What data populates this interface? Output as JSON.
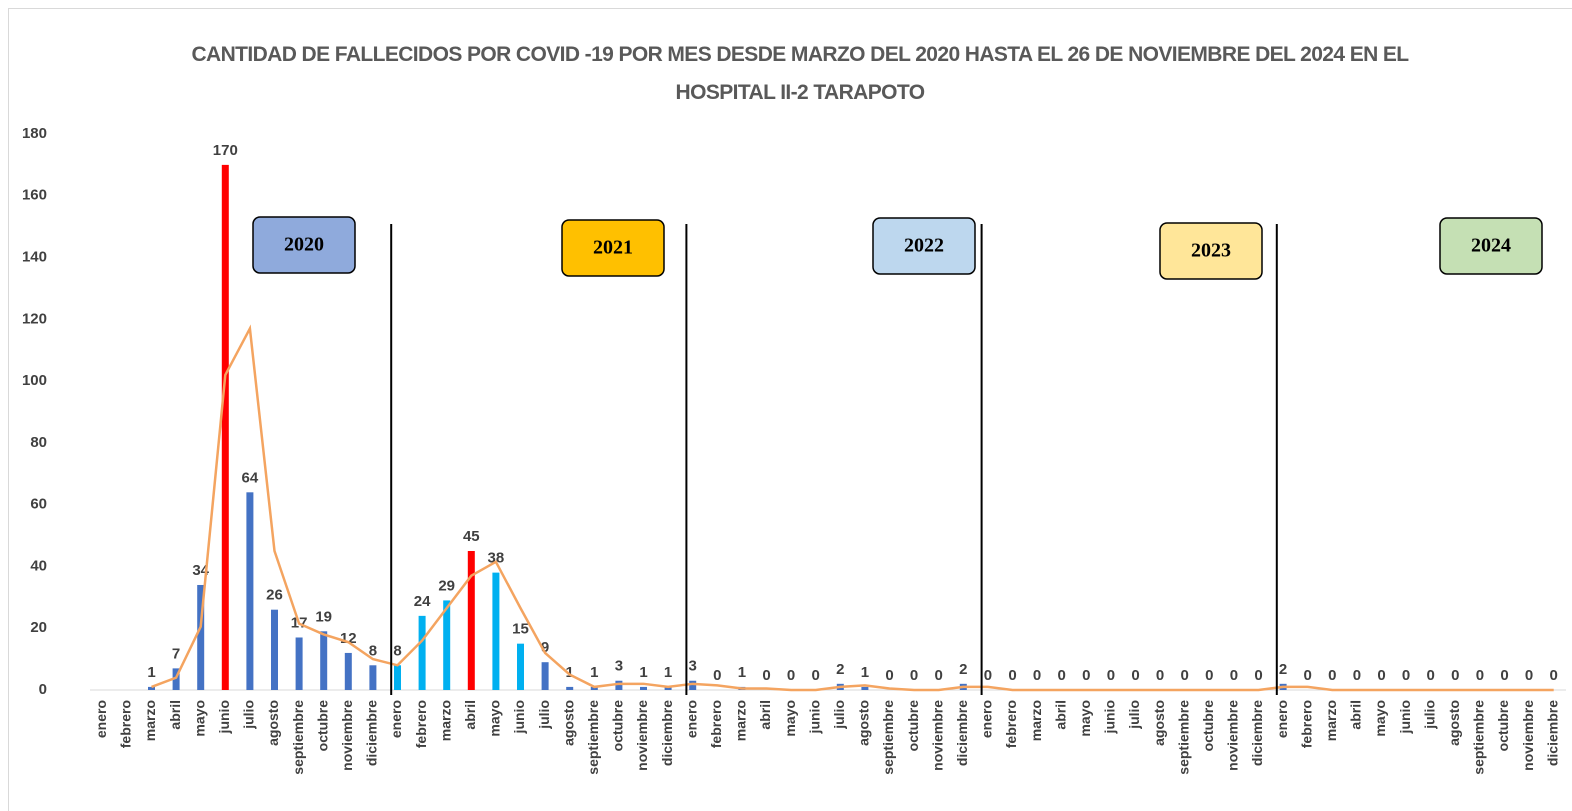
{
  "chart_data": {
    "type": "bar",
    "title": "CANTIDAD DE FALLECIDOS POR COVID -19  POR MES  DESDE MARZO DEL 2020 HASTA EL  26 DE NOVIEMBRE DEL 2024 EN EL HOSPITAL II-2 TARAPOTO",
    "categories": [
      "enero",
      "febrero",
      "marzo",
      "abril",
      "mayo",
      "junio",
      "julio",
      "agosto",
      "septiembre",
      "octubre",
      "noviembre",
      "diciembre",
      "enero",
      "febrero",
      "marzo",
      "abril",
      "mayo",
      "junio",
      "julio",
      "agosto",
      "septiembre",
      "octubre",
      "noviembre",
      "diciembre",
      "enero",
      "febrero",
      "marzo",
      "abril",
      "mayo",
      "junio",
      "julio",
      "agosto",
      "septiembre",
      "octubre",
      "noviembre",
      "diciembre",
      "enero",
      "febrero",
      "marzo",
      "abril",
      "mayo",
      "junio",
      "julio",
      "agosto",
      "septiembre",
      "octubre",
      "noviembre",
      "diciembre",
      "enero",
      "febrero",
      "marzo",
      "abril",
      "mayo",
      "junio",
      "julio",
      "agosto",
      "septiembre",
      "octubre",
      "noviembre",
      "diciembre"
    ],
    "values": [
      null,
      null,
      1,
      7,
      34,
      170,
      64,
      26,
      17,
      19,
      12,
      8,
      8,
      24,
      29,
      45,
      38,
      15,
      9,
      1,
      1,
      3,
      1,
      1,
      3,
      0,
      1,
      0,
      0,
      0,
      2,
      1,
      0,
      0,
      0,
      2,
      0,
      0,
      0,
      0,
      0,
      0,
      0,
      0,
      0,
      0,
      0,
      0,
      2,
      0,
      0,
      0,
      0,
      0,
      0,
      0,
      0,
      0,
      0,
      0
    ],
    "colors": [
      "#4472c4",
      "#4472c4",
      "#4472c4",
      "#4472c4",
      "#4472c4",
      "#ff0000",
      "#4472c4",
      "#4472c4",
      "#4472c4",
      "#4472c4",
      "#4472c4",
      "#4472c4",
      "#00b0f0",
      "#00b0f0",
      "#00b0f0",
      "#ff0000",
      "#00b0f0",
      "#00b0f0",
      "#4472c4",
      "#4472c4",
      "#4472c4",
      "#4472c4",
      "#4472c4",
      "#4472c4",
      "#4472c4",
      "#4472c4",
      "#4472c4",
      "#4472c4",
      "#4472c4",
      "#4472c4",
      "#4472c4",
      "#4472c4",
      "#4472c4",
      "#4472c4",
      "#4472c4",
      "#4472c4",
      "#4472c4",
      "#4472c4",
      "#4472c4",
      "#4472c4",
      "#4472c4",
      "#4472c4",
      "#4472c4",
      "#4472c4",
      "#4472c4",
      "#4472c4",
      "#4472c4",
      "#4472c4",
      "#4472c4",
      "#4472c4",
      "#4472c4",
      "#4472c4",
      "#4472c4",
      "#4472c4",
      "#4472c4",
      "#4472c4",
      "#4472c4",
      "#4472c4",
      "#4472c4",
      "#4472c4"
    ],
    "trendline": {
      "color": "#f4a460",
      "values": [
        null,
        null,
        1,
        4,
        20.5,
        102,
        117,
        45,
        21.5,
        18,
        15.5,
        10,
        8,
        16,
        26.5,
        37,
        41.5,
        26.5,
        12,
        5,
        1,
        2,
        2,
        1,
        2,
        1.5,
        0.5,
        0.5,
        0,
        0,
        1,
        1.5,
        0.5,
        0,
        0,
        1,
        1,
        0,
        0,
        0,
        0,
        0,
        0,
        0,
        0,
        0,
        0,
        0,
        1,
        1,
        0,
        0,
        0,
        0,
        0,
        0,
        0,
        0,
        0,
        0
      ]
    },
    "annotations": [
      {
        "label": "2020",
        "color": "#8faadc"
      },
      {
        "label": "2021",
        "color": "#ffc000"
      },
      {
        "label": "2022",
        "color": "#bdd7ee"
      },
      {
        "label": "2023",
        "color": "#ffe699"
      },
      {
        "label": "2024",
        "color": "#c5e0b4"
      }
    ],
    "ylim": [
      0,
      180
    ],
    "yticks": [
      0,
      20,
      40,
      60,
      80,
      100,
      120,
      140,
      160,
      180
    ],
    "grid": false
  }
}
